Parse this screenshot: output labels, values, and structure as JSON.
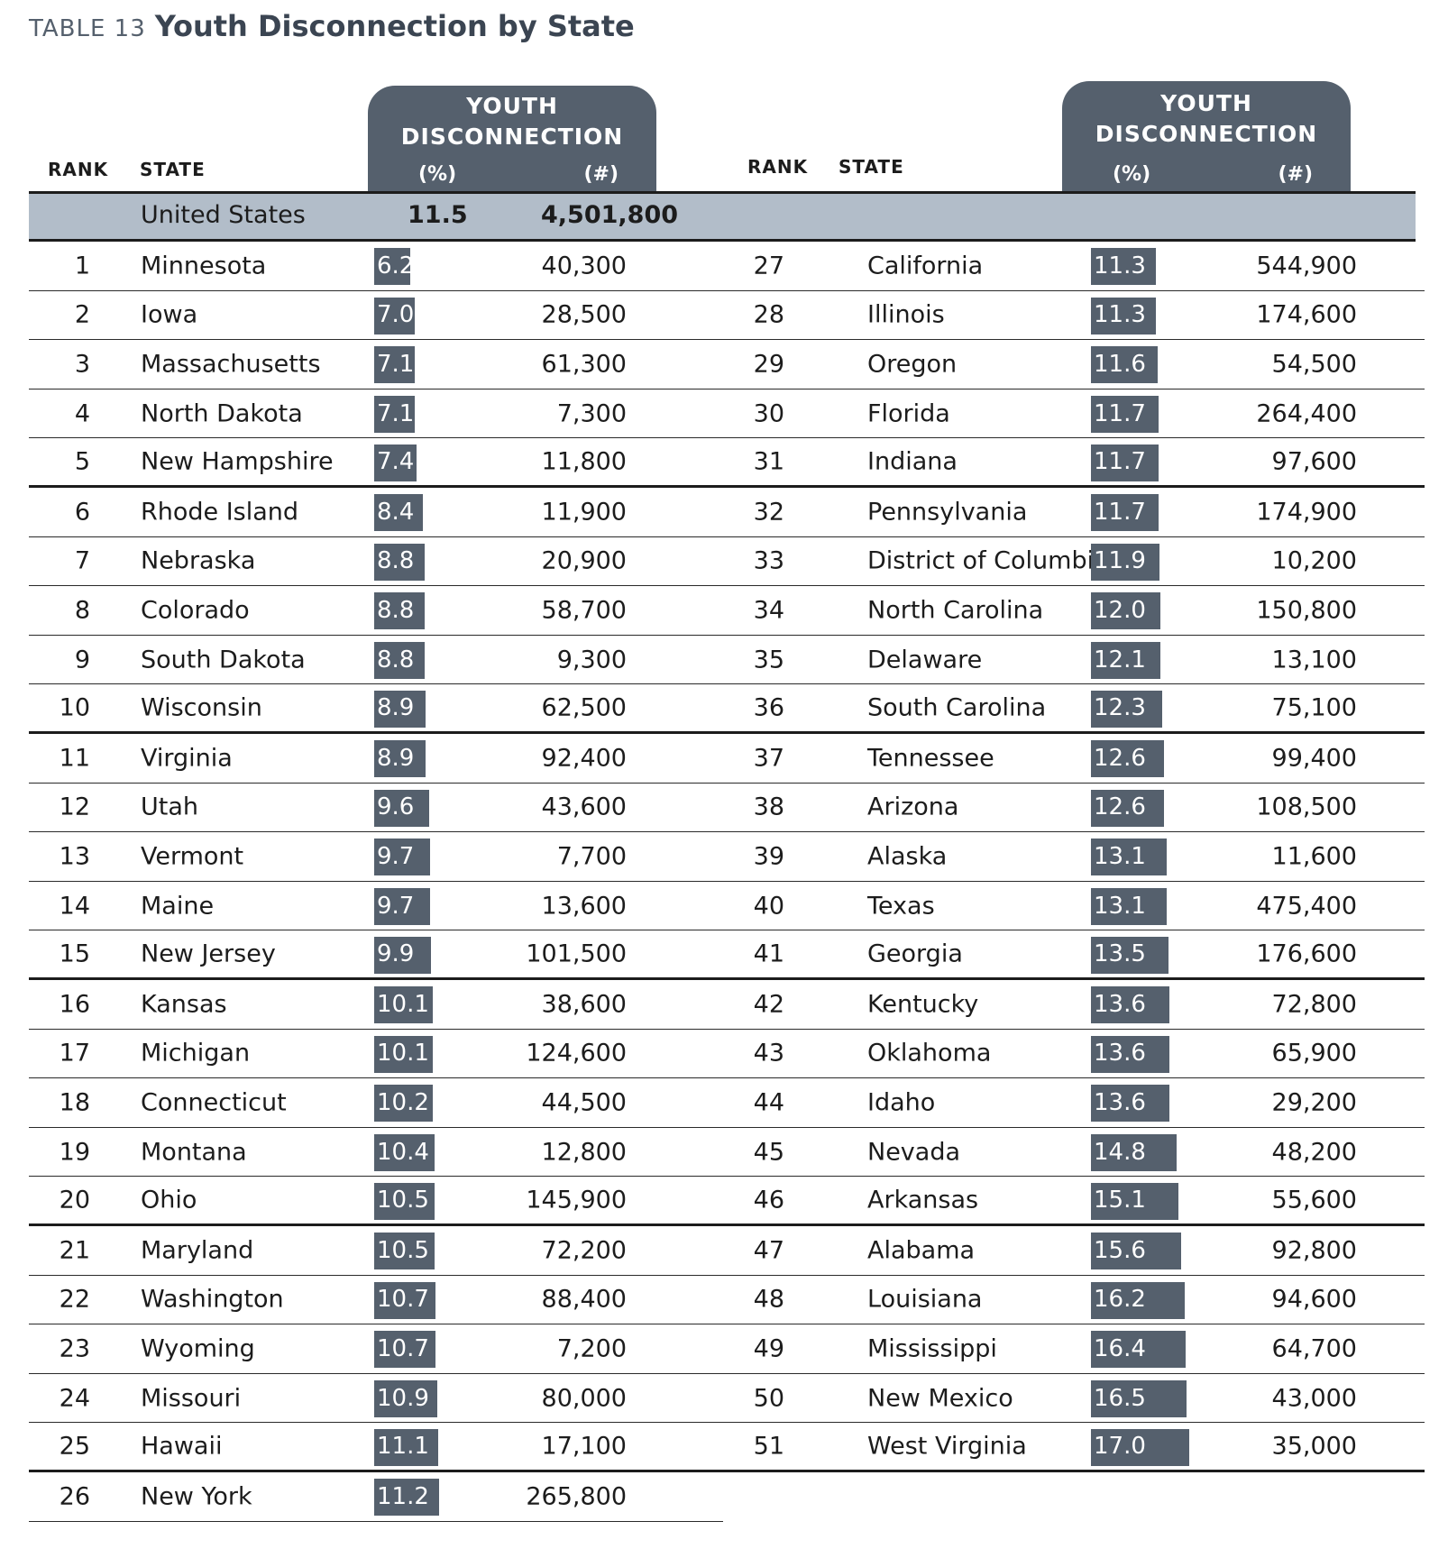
{
  "title": {
    "label": "TABLE 13",
    "main": "Youth Disconnection by State"
  },
  "headers": {
    "rank": "RANK",
    "state": "STATE",
    "metric_line1": "YOUTH",
    "metric_line2": "DISCONNECTION",
    "pct": "(%)",
    "count": "(#)"
  },
  "colors": {
    "header_pill": "#55606d",
    "us_band": "#b2bdc9",
    "bar": "#55606d"
  },
  "united_states": {
    "state": "United States",
    "pct": "11.5",
    "count": "4,501,800"
  },
  "rows_left": [
    {
      "rank": "1",
      "state": "Minnesota",
      "pct": "6.2",
      "count": "40,300"
    },
    {
      "rank": "2",
      "state": "Iowa",
      "pct": "7.0",
      "count": "28,500"
    },
    {
      "rank": "3",
      "state": "Massachusetts",
      "pct": "7.1",
      "count": "61,300"
    },
    {
      "rank": "4",
      "state": "North Dakota",
      "pct": "7.1",
      "count": "7,300"
    },
    {
      "rank": "5",
      "state": "New Hampshire",
      "pct": "7.4",
      "count": "11,800"
    },
    {
      "rank": "6",
      "state": "Rhode Island",
      "pct": "8.4",
      "count": "11,900"
    },
    {
      "rank": "7",
      "state": "Nebraska",
      "pct": "8.8",
      "count": "20,900"
    },
    {
      "rank": "8",
      "state": "Colorado",
      "pct": "8.8",
      "count": "58,700"
    },
    {
      "rank": "9",
      "state": "South Dakota",
      "pct": "8.8",
      "count": "9,300"
    },
    {
      "rank": "10",
      "state": "Wisconsin",
      "pct": "8.9",
      "count": "62,500"
    },
    {
      "rank": "11",
      "state": "Virginia",
      "pct": "8.9",
      "count": "92,400"
    },
    {
      "rank": "12",
      "state": "Utah",
      "pct": "9.6",
      "count": "43,600"
    },
    {
      "rank": "13",
      "state": "Vermont",
      "pct": "9.7",
      "count": "7,700"
    },
    {
      "rank": "14",
      "state": "Maine",
      "pct": "9.7",
      "count": "13,600"
    },
    {
      "rank": "15",
      "state": "New Jersey",
      "pct": "9.9",
      "count": "101,500"
    },
    {
      "rank": "16",
      "state": "Kansas",
      "pct": "10.1",
      "count": "38,600"
    },
    {
      "rank": "17",
      "state": "Michigan",
      "pct": "10.1",
      "count": "124,600"
    },
    {
      "rank": "18",
      "state": "Connecticut",
      "pct": "10.2",
      "count": "44,500"
    },
    {
      "rank": "19",
      "state": "Montana",
      "pct": "10.4",
      "count": "12,800"
    },
    {
      "rank": "20",
      "state": "Ohio",
      "pct": "10.5",
      "count": "145,900"
    },
    {
      "rank": "21",
      "state": "Maryland",
      "pct": "10.5",
      "count": "72,200"
    },
    {
      "rank": "22",
      "state": "Washington",
      "pct": "10.7",
      "count": "88,400"
    },
    {
      "rank": "23",
      "state": "Wyoming",
      "pct": "10.7",
      "count": "7,200"
    },
    {
      "rank": "24",
      "state": "Missouri",
      "pct": "10.9",
      "count": "80,000"
    },
    {
      "rank": "25",
      "state": "Hawaii",
      "pct": "11.1",
      "count": "17,100"
    },
    {
      "rank": "26",
      "state": "New York",
      "pct": "11.2",
      "count": "265,800"
    }
  ],
  "rows_right": [
    {
      "rank": "27",
      "state": "California",
      "pct": "11.3",
      "count": "544,900"
    },
    {
      "rank": "28",
      "state": "Illinois",
      "pct": "11.3",
      "count": "174,600"
    },
    {
      "rank": "29",
      "state": "Oregon",
      "pct": "11.6",
      "count": "54,500"
    },
    {
      "rank": "30",
      "state": "Florida",
      "pct": "11.7",
      "count": "264,400"
    },
    {
      "rank": "31",
      "state": "Indiana",
      "pct": "11.7",
      "count": "97,600"
    },
    {
      "rank": "32",
      "state": "Pennsylvania",
      "pct": "11.7",
      "count": "174,900"
    },
    {
      "rank": "33",
      "state": "District of Columbia",
      "pct": "11.9",
      "count": "10,200"
    },
    {
      "rank": "34",
      "state": "North Carolina",
      "pct": "12.0",
      "count": "150,800"
    },
    {
      "rank": "35",
      "state": "Delaware",
      "pct": "12.1",
      "count": "13,100"
    },
    {
      "rank": "36",
      "state": "South Carolina",
      "pct": "12.3",
      "count": "75,100"
    },
    {
      "rank": "37",
      "state": "Tennessee",
      "pct": "12.6",
      "count": "99,400"
    },
    {
      "rank": "38",
      "state": "Arizona",
      "pct": "12.6",
      "count": "108,500"
    },
    {
      "rank": "39",
      "state": "Alaska",
      "pct": "13.1",
      "count": "11,600"
    },
    {
      "rank": "40",
      "state": "Texas",
      "pct": "13.1",
      "count": "475,400"
    },
    {
      "rank": "41",
      "state": "Georgia",
      "pct": "13.5",
      "count": "176,600"
    },
    {
      "rank": "42",
      "state": "Kentucky",
      "pct": "13.6",
      "count": "72,800"
    },
    {
      "rank": "43",
      "state": "Oklahoma",
      "pct": "13.6",
      "count": "65,900"
    },
    {
      "rank": "44",
      "state": "Idaho",
      "pct": "13.6",
      "count": "29,200"
    },
    {
      "rank": "45",
      "state": "Nevada",
      "pct": "14.8",
      "count": "48,200"
    },
    {
      "rank": "46",
      "state": "Arkansas",
      "pct": "15.1",
      "count": "55,600"
    },
    {
      "rank": "47",
      "state": "Alabama",
      "pct": "15.6",
      "count": "92,800"
    },
    {
      "rank": "48",
      "state": "Louisiana",
      "pct": "16.2",
      "count": "94,600"
    },
    {
      "rank": "49",
      "state": "Mississippi",
      "pct": "16.4",
      "count": "64,700"
    },
    {
      "rank": "50",
      "state": "New Mexico",
      "pct": "16.5",
      "count": "43,000"
    },
    {
      "rank": "51",
      "state": "West Virginia",
      "pct": "17.0",
      "count": "35,000"
    }
  ]
}
